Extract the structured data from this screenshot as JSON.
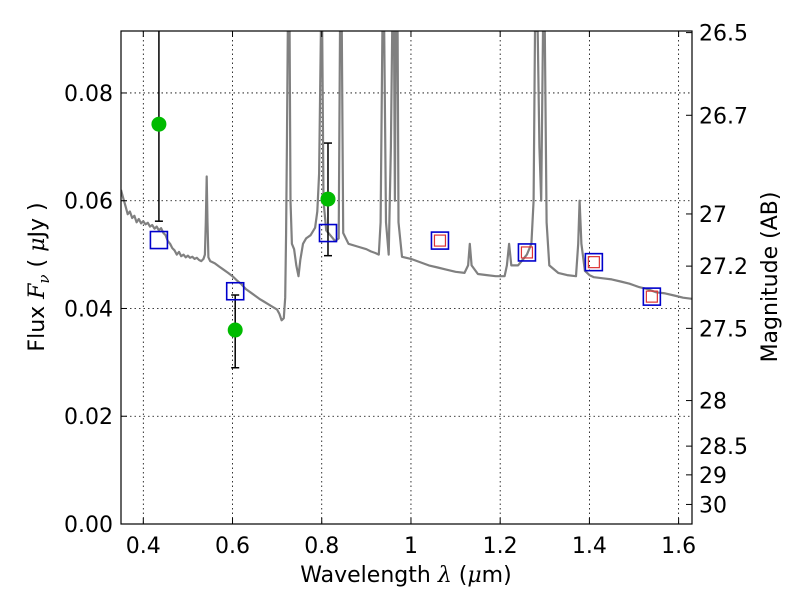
{
  "chart_data": {
    "type": "scatter",
    "title": "",
    "xlabel": "Wavelength",
    "xlabel_math": "λ",
    "xlabel_unit_prefix": "(",
    "xlabel_unit_math": "μ",
    "xlabel_unit_suffix": "m)",
    "ylabel": "Flux",
    "ylabel_math": "F",
    "ylabel_math_sub": "ν",
    "ylabel_unit_prefix": "(",
    "ylabel_unit_math": "μ",
    "ylabel_unit_suffix": "Jy )",
    "y2label": "Magnitude (AB)",
    "xlim": [
      0.35,
      1.63
    ],
    "ylim": [
      0.0,
      0.0915
    ],
    "grid": true,
    "x_ticks": [
      {
        "value": 0.4,
        "label": "0.4"
      },
      {
        "value": 0.6,
        "label": "0.6"
      },
      {
        "value": 0.8,
        "label": "0.8"
      },
      {
        "value": 1.0,
        "label": "1"
      },
      {
        "value": 1.2,
        "label": "1.2"
      },
      {
        "value": 1.4,
        "label": "1.4"
      },
      {
        "value": 1.6,
        "label": "1.6"
      }
    ],
    "y_ticks": [
      {
        "value": 0.0,
        "label": "0.00"
      },
      {
        "value": 0.02,
        "label": "0.02"
      },
      {
        "value": 0.04,
        "label": "0.04"
      },
      {
        "value": 0.06,
        "label": "0.06"
      },
      {
        "value": 0.08,
        "label": "0.08"
      }
    ],
    "y2_ticks": [
      {
        "mag": 26.5,
        "label": "26.5"
      },
      {
        "mag": 26.7,
        "label": "26.7"
      },
      {
        "mag": 27.0,
        "label": "27"
      },
      {
        "mag": 27.2,
        "label": "27.2"
      },
      {
        "mag": 27.5,
        "label": "27.5"
      },
      {
        "mag": 28.0,
        "label": "28"
      },
      {
        "mag": 28.5,
        "label": "28.5"
      },
      {
        "mag": 29.0,
        "label": "29"
      },
      {
        "mag": 30.0,
        "label": "30"
      }
    ],
    "series": [
      {
        "kind": "observed",
        "marker": "circle",
        "color": "#00bb00",
        "points": [
          {
            "x": 0.435,
            "y": 0.0742,
            "yerr_low": 0.0562,
            "yerr_high": 0.0915
          },
          {
            "x": 0.606,
            "y": 0.036,
            "yerr_low": 0.029,
            "yerr_high": 0.0425
          },
          {
            "x": 0.814,
            "y": 0.0603,
            "yerr_low": 0.0498,
            "yerr_high": 0.0707
          }
        ]
      },
      {
        "kind": "model_photometry",
        "marker": "square",
        "color": "#0000cc",
        "points": [
          {
            "x": 0.435,
            "y": 0.0527
          },
          {
            "x": 0.606,
            "y": 0.0432
          },
          {
            "x": 0.814,
            "y": 0.054
          },
          {
            "x": 1.065,
            "y": 0.0526
          },
          {
            "x": 1.26,
            "y": 0.0504
          },
          {
            "x": 1.41,
            "y": 0.0486
          },
          {
            "x": 1.54,
            "y": 0.0422
          }
        ]
      },
      {
        "kind": "model_photometry_inner",
        "marker": "square",
        "color": "#dd3333",
        "points": [
          {
            "x": 1.065,
            "y": 0.0526
          },
          {
            "x": 1.26,
            "y": 0.0504
          },
          {
            "x": 1.41,
            "y": 0.0486
          },
          {
            "x": 1.54,
            "y": 0.0422
          }
        ]
      },
      {
        "kind": "spectrum",
        "marker": "line",
        "color": "#808080",
        "points": [
          [
            0.35,
            0.062
          ],
          [
            0.355,
            0.0605
          ],
          [
            0.36,
            0.059
          ],
          [
            0.365,
            0.0575
          ],
          [
            0.37,
            0.058
          ],
          [
            0.375,
            0.0568
          ],
          [
            0.38,
            0.0572
          ],
          [
            0.385,
            0.056
          ],
          [
            0.39,
            0.0566
          ],
          [
            0.395,
            0.0558
          ],
          [
            0.4,
            0.0562
          ],
          [
            0.405,
            0.0556
          ],
          [
            0.41,
            0.0559
          ],
          [
            0.415,
            0.0552
          ],
          [
            0.42,
            0.0555
          ],
          [
            0.425,
            0.0548
          ],
          [
            0.43,
            0.0552
          ],
          [
            0.435,
            0.0545
          ],
          [
            0.44,
            0.0549
          ],
          [
            0.445,
            0.054
          ],
          [
            0.45,
            0.0536
          ],
          [
            0.455,
            0.0525
          ],
          [
            0.46,
            0.052
          ],
          [
            0.465,
            0.0512
          ],
          [
            0.47,
            0.0508
          ],
          [
            0.475,
            0.05
          ],
          [
            0.48,
            0.0505
          ],
          [
            0.485,
            0.0497
          ],
          [
            0.49,
            0.05
          ],
          [
            0.495,
            0.0495
          ],
          [
            0.5,
            0.0498
          ],
          [
            0.505,
            0.0494
          ],
          [
            0.51,
            0.0496
          ],
          [
            0.515,
            0.0492
          ],
          [
            0.52,
            0.0494
          ],
          [
            0.525,
            0.049
          ],
          [
            0.53,
            0.0488
          ],
          [
            0.535,
            0.0492
          ],
          [
            0.538,
            0.05
          ],
          [
            0.54,
            0.056
          ],
          [
            0.542,
            0.0645
          ],
          [
            0.544,
            0.056
          ],
          [
            0.546,
            0.0495
          ],
          [
            0.55,
            0.0488
          ],
          [
            0.56,
            0.0484
          ],
          [
            0.57,
            0.0478
          ],
          [
            0.58,
            0.0472
          ],
          [
            0.59,
            0.0466
          ],
          [
            0.6,
            0.046
          ],
          [
            0.61,
            0.0452
          ],
          [
            0.62,
            0.0445
          ],
          [
            0.63,
            0.0436
          ],
          [
            0.64,
            0.043
          ],
          [
            0.65,
            0.0424
          ],
          [
            0.66,
            0.0418
          ],
          [
            0.67,
            0.0413
          ],
          [
            0.68,
            0.0408
          ],
          [
            0.69,
            0.0403
          ],
          [
            0.7,
            0.0398
          ],
          [
            0.705,
            0.039
          ],
          [
            0.71,
            0.0378
          ],
          [
            0.715,
            0.0382
          ],
          [
            0.718,
            0.042
          ],
          [
            0.72,
            0.054
          ],
          [
            0.722,
            0.07
          ],
          [
            0.724,
            0.0915
          ],
          [
            0.728,
            0.0915
          ],
          [
            0.73,
            0.06
          ],
          [
            0.733,
            0.052
          ],
          [
            0.738,
            0.051
          ],
          [
            0.743,
            0.048
          ],
          [
            0.748,
            0.046
          ],
          [
            0.752,
            0.049
          ],
          [
            0.758,
            0.052
          ],
          [
            0.765,
            0.053
          ],
          [
            0.775,
            0.0536
          ],
          [
            0.785,
            0.055
          ],
          [
            0.79,
            0.058
          ],
          [
            0.794,
            0.065
          ],
          [
            0.798,
            0.0915
          ],
          [
            0.801,
            0.0915
          ],
          [
            0.804,
            0.06
          ],
          [
            0.81,
            0.0545
          ],
          [
            0.82,
            0.0535
          ],
          [
            0.83,
            0.0525
          ],
          [
            0.838,
            0.053
          ],
          [
            0.841,
            0.0915
          ],
          [
            0.845,
            0.0915
          ],
          [
            0.848,
            0.054
          ],
          [
            0.86,
            0.052
          ],
          [
            0.88,
            0.0515
          ],
          [
            0.9,
            0.051
          ],
          [
            0.91,
            0.0506
          ],
          [
            0.92,
            0.0503
          ],
          [
            0.928,
            0.05
          ],
          [
            0.932,
            0.056
          ],
          [
            0.936,
            0.0915
          ],
          [
            0.94,
            0.0915
          ],
          [
            0.944,
            0.056
          ],
          [
            0.95,
            0.05
          ],
          [
            0.955,
            0.07
          ],
          [
            0.958,
            0.0915
          ],
          [
            0.962,
            0.0915
          ],
          [
            0.964,
            0.06
          ],
          [
            0.966,
            0.0915
          ],
          [
            0.97,
            0.0915
          ],
          [
            0.972,
            0.056
          ],
          [
            0.98,
            0.0496
          ],
          [
            1.0,
            0.0492
          ],
          [
            1.02,
            0.0486
          ],
          [
            1.04,
            0.048
          ],
          [
            1.06,
            0.0476
          ],
          [
            1.08,
            0.0472
          ],
          [
            1.1,
            0.0468
          ],
          [
            1.12,
            0.0466
          ],
          [
            1.128,
            0.048
          ],
          [
            1.132,
            0.052
          ],
          [
            1.136,
            0.048
          ],
          [
            1.15,
            0.0464
          ],
          [
            1.17,
            0.0462
          ],
          [
            1.19,
            0.046
          ],
          [
            1.21,
            0.046
          ],
          [
            1.215,
            0.048
          ],
          [
            1.22,
            0.052
          ],
          [
            1.225,
            0.048
          ],
          [
            1.24,
            0.048
          ],
          [
            1.25,
            0.049
          ],
          [
            1.26,
            0.05
          ],
          [
            1.27,
            0.052
          ],
          [
            1.275,
            0.06
          ],
          [
            1.278,
            0.0915
          ],
          [
            1.284,
            0.0915
          ],
          [
            1.288,
            0.07
          ],
          [
            1.292,
            0.06
          ],
          [
            1.296,
            0.0915
          ],
          [
            1.3,
            0.0915
          ],
          [
            1.304,
            0.056
          ],
          [
            1.31,
            0.048
          ],
          [
            1.33,
            0.0466
          ],
          [
            1.35,
            0.0462
          ],
          [
            1.37,
            0.046
          ],
          [
            1.375,
            0.052
          ],
          [
            1.378,
            0.06
          ],
          [
            1.382,
            0.052
          ],
          [
            1.39,
            0.047
          ],
          [
            1.4,
            0.0462
          ],
          [
            1.41,
            0.0458
          ],
          [
            1.43,
            0.0456
          ],
          [
            1.45,
            0.0454
          ],
          [
            1.47,
            0.045
          ],
          [
            1.49,
            0.0446
          ],
          [
            1.51,
            0.044
          ],
          [
            1.53,
            0.0436
          ],
          [
            1.55,
            0.043
          ],
          [
            1.57,
            0.0428
          ],
          [
            1.59,
            0.0424
          ],
          [
            1.61,
            0.042
          ],
          [
            1.63,
            0.0418
          ]
        ]
      }
    ]
  }
}
